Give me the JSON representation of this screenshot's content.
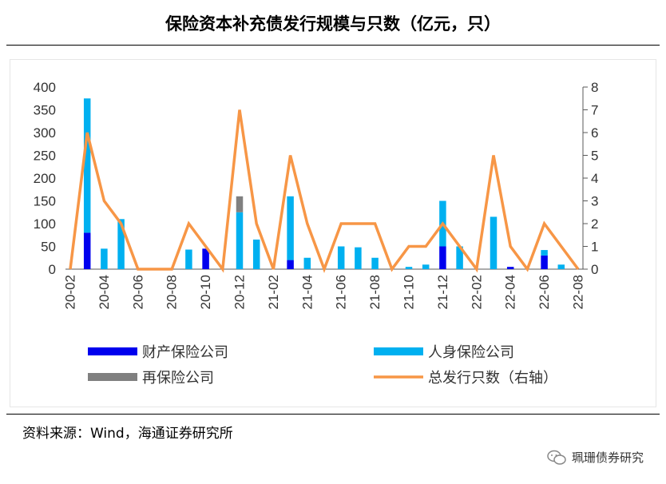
{
  "title": "保险资本补充债发行规模与只数（亿元，只）",
  "source": "资料来源：Wind，海通证券研究所",
  "brand": "珮珊债券研究",
  "colors": {
    "property": "#0000ee",
    "life": "#00b0f0",
    "reinsurance": "#808080",
    "count_line": "#f79646"
  },
  "chart_data": {
    "type": "bar",
    "stacked": true,
    "categories": [
      "20-02",
      "20-03",
      "20-04",
      "20-05",
      "20-06",
      "20-07",
      "20-08",
      "20-09",
      "20-10",
      "20-11",
      "20-12",
      "21-01",
      "21-02",
      "21-03",
      "21-04",
      "21-05",
      "21-06",
      "21-07",
      "21-08",
      "21-09",
      "21-10",
      "21-11",
      "21-12",
      "22-01",
      "22-02",
      "22-03",
      "22-04",
      "22-05",
      "22-06",
      "22-07",
      "22-08"
    ],
    "tick_labels": [
      "20-02",
      "20-04",
      "20-06",
      "20-08",
      "20-10",
      "20-12",
      "21-02",
      "21-04",
      "21-06",
      "21-08",
      "21-10",
      "21-12",
      "22-02",
      "22-04",
      "22-06",
      "22-08"
    ],
    "y_left_ticks": [
      "0",
      "50",
      "100",
      "150",
      "200",
      "250",
      "300",
      "350",
      "400"
    ],
    "y_right_ticks": [
      "0",
      "1",
      "2",
      "3",
      "4",
      "5",
      "6",
      "7",
      "8"
    ],
    "ylim_left": [
      0,
      400
    ],
    "ylim_right": [
      0,
      8
    ],
    "grid": false,
    "legend_position": "bottom",
    "series": [
      {
        "name": "财产保险公司",
        "kind": "bar",
        "axis": "left",
        "values": [
          0,
          80,
          0,
          0,
          0,
          0,
          0,
          0,
          45,
          0,
          0,
          0,
          0,
          20,
          0,
          0,
          0,
          0,
          0,
          0,
          0,
          0,
          50,
          0,
          0,
          0,
          5,
          0,
          30,
          0,
          0
        ]
      },
      {
        "name": "人身保险公司",
        "kind": "bar",
        "axis": "left",
        "values": [
          0,
          295,
          45,
          110,
          0,
          0,
          0,
          43,
          0,
          0,
          125,
          65,
          0,
          140,
          25,
          0,
          50,
          48,
          25,
          0,
          5,
          10,
          100,
          50,
          0,
          115,
          0,
          0,
          12,
          10,
          0
        ]
      },
      {
        "name": "再保险公司",
        "kind": "bar",
        "axis": "left",
        "values": [
          0,
          0,
          0,
          0,
          0,
          0,
          0,
          0,
          0,
          0,
          35,
          0,
          0,
          0,
          0,
          0,
          0,
          0,
          0,
          0,
          0,
          0,
          0,
          0,
          0,
          0,
          0,
          0,
          0,
          0,
          0
        ]
      },
      {
        "name": "总发行只数（右轴）",
        "kind": "line",
        "axis": "right",
        "values": [
          0,
          6,
          3,
          2,
          0,
          0,
          0,
          2,
          1,
          0,
          7,
          2,
          0,
          5,
          2,
          0,
          2,
          2,
          2,
          0,
          1,
          1,
          2,
          1,
          0,
          5,
          1,
          0,
          2,
          1,
          0
        ]
      }
    ]
  }
}
